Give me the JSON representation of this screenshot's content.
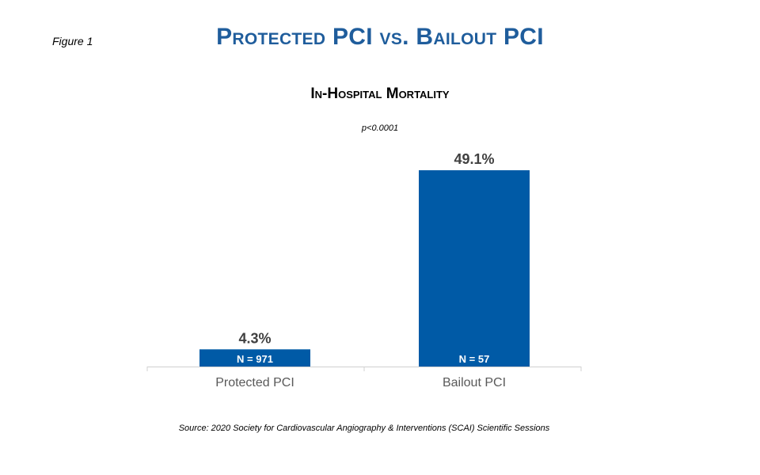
{
  "figure_label": "Figure 1",
  "source": "Source: 2020 Society for Cardiovascular Angiography & Interventions (SCAI) Scientific Sessions",
  "chart_data": {
    "type": "bar",
    "title": "Protected PCI vs. Bailout PCI",
    "subtitle": "In-Hospital  Mortality",
    "annotation": "p<0.0001",
    "categories": [
      "Protected PCI",
      "Bailout PCI"
    ],
    "values": [
      4.3,
      49.1
    ],
    "value_labels": [
      "4.3%",
      "49.1%"
    ],
    "n_labels": [
      "N = 971",
      "N = 57"
    ],
    "unit": "%",
    "grid": false,
    "bar_color": "#005aa6",
    "title_color": "#1f5d9c"
  }
}
